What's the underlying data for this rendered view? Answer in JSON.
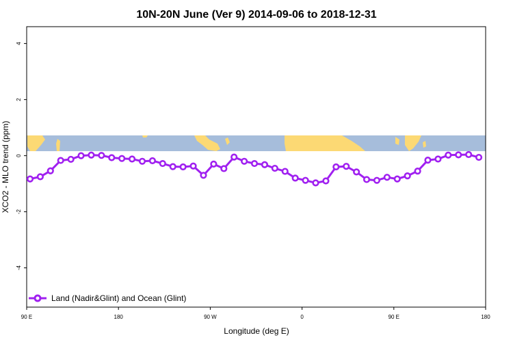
{
  "chart_data": {
    "type": "line",
    "title": "10N-20N June (Ver 9)   2014-09-06 to 2018-12-31",
    "xlabel": "Longitude (deg E)",
    "ylabel": "XCO2 - MLO trend (ppm)",
    "xlim": [
      -90,
      180
    ],
    "ylim": [
      -5.4,
      4.6
    ],
    "x_ticks": [
      {
        "value": -90,
        "label": "90 E"
      },
      {
        "value": -36,
        "label": "180"
      },
      {
        "value": 18,
        "label": "90 W"
      },
      {
        "value": 72,
        "label": "0"
      },
      {
        "value": 126,
        "label": "90 E"
      },
      {
        "value": 180,
        "label": "180"
      }
    ],
    "y_ticks": [
      {
        "value": 4,
        "label": "4"
      },
      {
        "value": 2,
        "label": "2"
      },
      {
        "value": 0,
        "label": "0"
      },
      {
        "value": -2,
        "label": "-2"
      },
      {
        "value": -4,
        "label": "-4"
      }
    ],
    "x_tick_marks": [
      -90,
      -36,
      18,
      72,
      126,
      180
    ],
    "grid": false,
    "legend_position": "bottom-left",
    "series": [
      {
        "name": "Land (Nadir&Glint) and Ocean (Glint)",
        "color": "#a020f0",
        "x": [
          -88,
          -82,
          -76,
          -70,
          -64,
          -58,
          -52,
          -46,
          -40,
          -34,
          -28,
          -22,
          -16,
          -10,
          -4,
          2,
          8,
          14,
          20,
          26,
          32,
          38,
          44,
          50,
          56,
          62,
          68,
          74,
          80,
          86,
          92,
          98,
          104,
          110,
          116,
          122,
          128,
          134,
          140,
          146,
          152,
          158,
          164,
          170,
          176
        ],
        "y": [
          -0.83,
          -0.75,
          -0.54,
          -0.17,
          -0.13,
          0.0,
          0.02,
          0.01,
          -0.07,
          -0.1,
          -0.12,
          -0.2,
          -0.18,
          -0.28,
          -0.39,
          -0.4,
          -0.37,
          -0.7,
          -0.3,
          -0.46,
          -0.05,
          -0.2,
          -0.28,
          -0.32,
          -0.45,
          -0.56,
          -0.8,
          -0.88,
          -0.97,
          -0.9,
          -0.4,
          -0.38,
          -0.58,
          -0.85,
          -0.88,
          -0.77,
          -0.83,
          -0.72,
          -0.55,
          -0.16,
          -0.12,
          0.02,
          0.03,
          0.04,
          -0.06
        ]
      }
    ]
  },
  "colors": {
    "ocean": "#a6bddb",
    "land": "#fcd974",
    "line": "#a020f0"
  }
}
